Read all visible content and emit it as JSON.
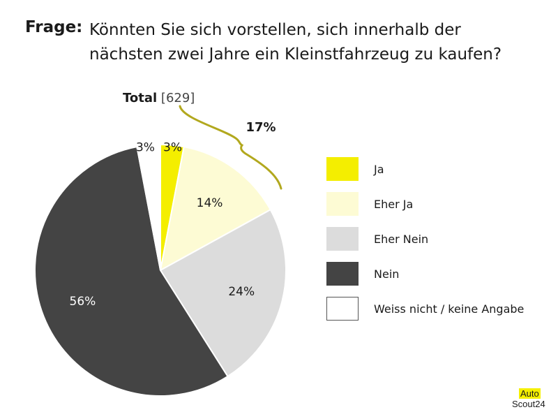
{
  "question": {
    "label": "Frage:",
    "text": "Könnten Sie sich vorstellen, sich innerhalb der nächsten zwei Jahre ein Kleinstfahrzeug zu kaufen?"
  },
  "total": {
    "label": "Total",
    "n": "[629]"
  },
  "bracket_label": "17%",
  "logo": {
    "line1": "Auto",
    "line2": "Scout24"
  },
  "colors": {
    "ja": "#f4ee00",
    "eher_ja": "#fdfbd4",
    "eher_nein": "#dcdcdc",
    "nein": "#444444",
    "weiss_nicht": "#ffffff",
    "bracket": "#b2a81e"
  },
  "chart_data": {
    "type": "pie",
    "slices": [
      {
        "label": "Ja",
        "value": 3,
        "display": "3%",
        "color": "#f4ee00",
        "text_color": "#1a1a1a"
      },
      {
        "label": "Eher Ja",
        "value": 14,
        "display": "14%",
        "color": "#fdfbd4",
        "text_color": "#1a1a1a"
      },
      {
        "label": "Eher Nein",
        "value": 24,
        "display": "24%",
        "color": "#dcdcdc",
        "text_color": "#1a1a1a"
      },
      {
        "label": "Nein",
        "value": 56,
        "display": "56%",
        "color": "#444444",
        "text_color": "#ffffff"
      },
      {
        "label": "Weiss nicht / keine Angabe",
        "value": 3,
        "display": "3%",
        "color": "#ffffff",
        "text_color": "#1a1a1a"
      }
    ],
    "legend_position": "right"
  }
}
